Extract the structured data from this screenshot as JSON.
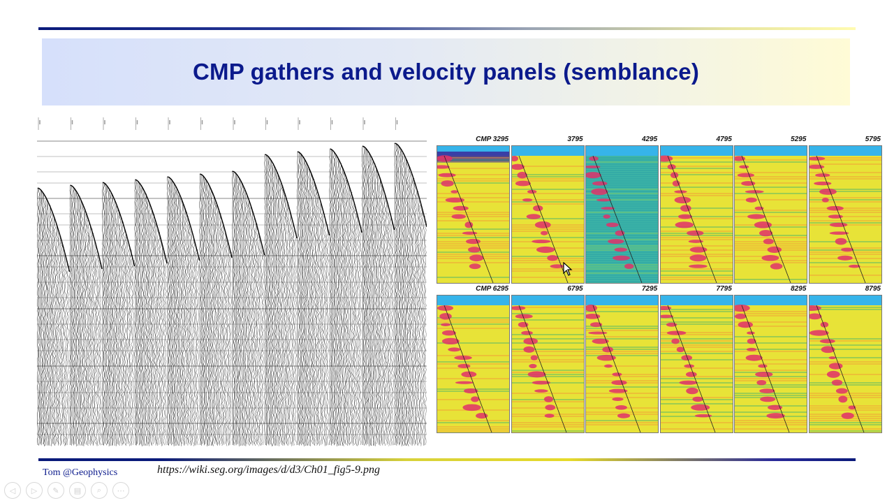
{
  "slide": {
    "title": "CMP gathers and velocity panels (semblance)",
    "author": "Tom @Geophysics",
    "source_url": "https://wiki.seg.org/images/d/d3/Ch01_fig5-9.png"
  },
  "gathers": {
    "count": 12,
    "image": "seismic-cmp-gathers-wiggle"
  },
  "velocity_panels": {
    "rows": [
      [
        "CMP 3295",
        "3795",
        "4295",
        "4795",
        "5295",
        "5795"
      ],
      [
        "CMP 6295",
        "6795",
        "7295",
        "7795",
        "8295",
        "8795"
      ]
    ],
    "colors": {
      "background": "#e9e336",
      "low": "#2ab0a0",
      "high": "#e0306a",
      "top_band": "#36b4ea"
    }
  },
  "toolbar": {
    "buttons": [
      "prev-icon",
      "next-icon",
      "pen-icon",
      "slides-icon",
      "zoom-icon",
      "more-icon"
    ]
  }
}
